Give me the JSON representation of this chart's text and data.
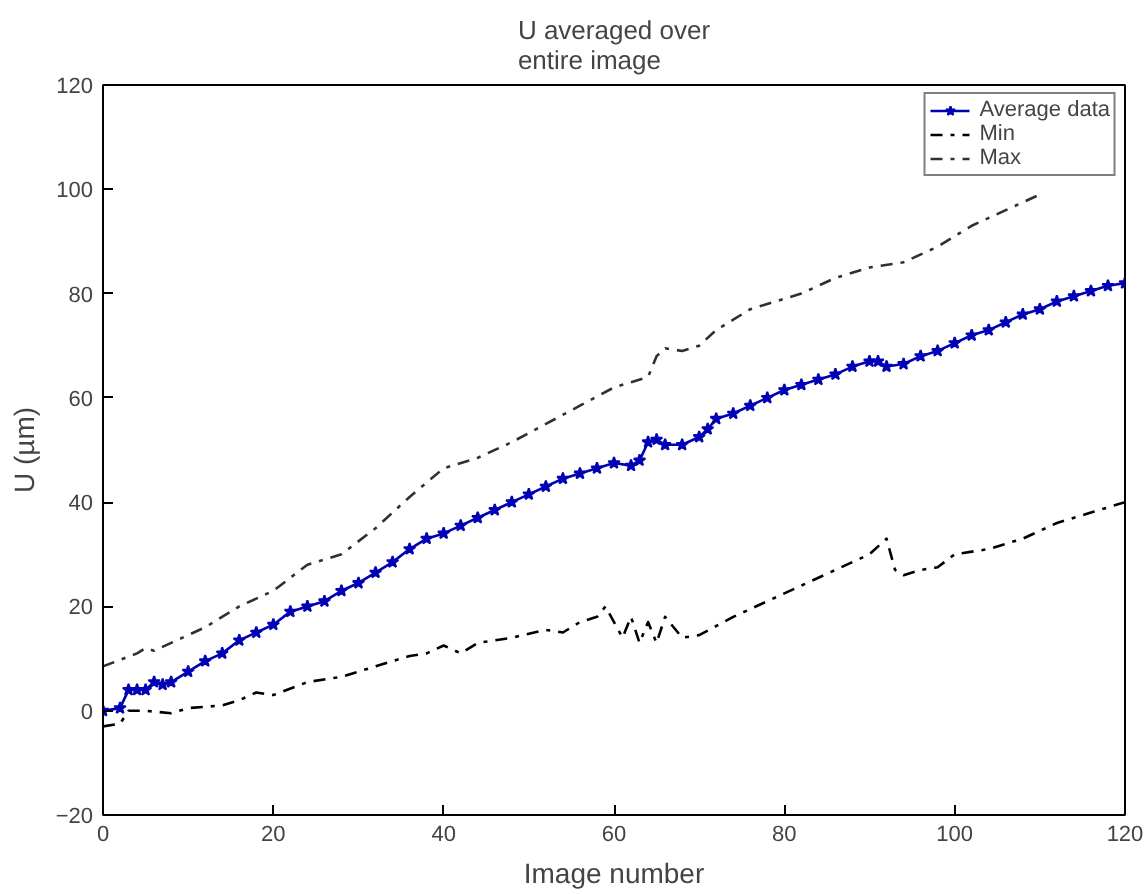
{
  "chart_data": {
    "type": "line",
    "title": "U averaged over\nentire image",
    "xlabel": "Image number",
    "ylabel": "U (µm)",
    "xlim": [
      0,
      120
    ],
    "ylim": [
      -20,
      120
    ],
    "xticks": [
      0,
      20,
      40,
      60,
      80,
      100,
      120
    ],
    "yticks": [
      -20,
      0,
      20,
      40,
      60,
      80,
      100,
      120
    ],
    "grid": false,
    "legend": "top right",
    "series": [
      {
        "name": "Average data",
        "color": "#0000b4",
        "marker": "star",
        "line_style": "solid",
        "x": [
          0,
          2,
          3,
          4,
          5,
          6,
          7,
          8,
          10,
          12,
          14,
          16,
          18,
          20,
          22,
          24,
          26,
          28,
          30,
          32,
          34,
          36,
          38,
          40,
          42,
          44,
          46,
          48,
          50,
          52,
          54,
          56,
          58,
          60,
          62,
          63,
          64,
          65,
          66,
          68,
          70,
          71,
          72,
          74,
          76,
          78,
          80,
          82,
          84,
          86,
          88,
          90,
          91,
          92,
          94,
          96,
          98,
          100,
          102,
          104,
          106,
          108,
          110,
          112,
          114,
          116,
          118,
          120
        ],
        "values": [
          0,
          0.5,
          4,
          4,
          4,
          5.5,
          5,
          5.5,
          7.5,
          9.5,
          11,
          13.5,
          15,
          16.5,
          19,
          20,
          21,
          23,
          24.5,
          26.5,
          28.5,
          31,
          33,
          34,
          35.5,
          37,
          38.5,
          40,
          41.5,
          43,
          44.5,
          45.5,
          46.5,
          47.5,
          47,
          48,
          51.5,
          52,
          51,
          51,
          52.5,
          54,
          56,
          57,
          58.5,
          60,
          61.5,
          62.5,
          63.5,
          64.5,
          66,
          67,
          67,
          66,
          66.5,
          68,
          69,
          70.5,
          72,
          73,
          74.5,
          76,
          77,
          78.5,
          79.5,
          80.5,
          81.5,
          82
        ]
      },
      {
        "name": "Min",
        "color": "#000000",
        "marker": "none",
        "line_style": "dashdot",
        "x": [
          0,
          2,
          3,
          5,
          8,
          10,
          14,
          16,
          18,
          20,
          24,
          28,
          32,
          36,
          38,
          40,
          42,
          44,
          48,
          52,
          54,
          56,
          58,
          59,
          60,
          61,
          62,
          63,
          64,
          65,
          66,
          67,
          68,
          70,
          74,
          78,
          82,
          86,
          90,
          92,
          93,
          94,
          96,
          98,
          100,
          104,
          108,
          112,
          116,
          120
        ],
        "values": [
          -3,
          -2.5,
          0,
          0,
          -0.5,
          0.5,
          1,
          2,
          3.5,
          3,
          5.5,
          6.5,
          8.5,
          10.5,
          11,
          12.5,
          11,
          13,
          14,
          15.5,
          15,
          17,
          18,
          20,
          17,
          14,
          18,
          13,
          17,
          13,
          18,
          16,
          14,
          14.5,
          18,
          21,
          24,
          27,
          30,
          33,
          27,
          26,
          27,
          27.5,
          30,
          31,
          33,
          36,
          38,
          40
        ]
      },
      {
        "name": "Max",
        "color": "#303030",
        "marker": "none",
        "line_style": "dashdot",
        "x": [
          0,
          4,
          5,
          6,
          8,
          12,
          16,
          20,
          24,
          28,
          32,
          36,
          40,
          44,
          48,
          52,
          56,
          60,
          62,
          64,
          65,
          66,
          68,
          70,
          72,
          74,
          76,
          80,
          82,
          86,
          90,
          94,
          98,
          102,
          106,
          110
        ],
        "values": [
          8.5,
          11,
          12,
          11.5,
          13,
          16,
          20,
          23,
          28,
          30,
          35,
          41,
          46.5,
          48.5,
          51.5,
          55,
          58.5,
          62,
          63,
          64,
          68,
          69.5,
          69,
          70,
          73,
          75,
          77,
          79,
          80,
          83,
          85,
          86,
          89,
          93,
          96,
          99
        ]
      }
    ]
  }
}
